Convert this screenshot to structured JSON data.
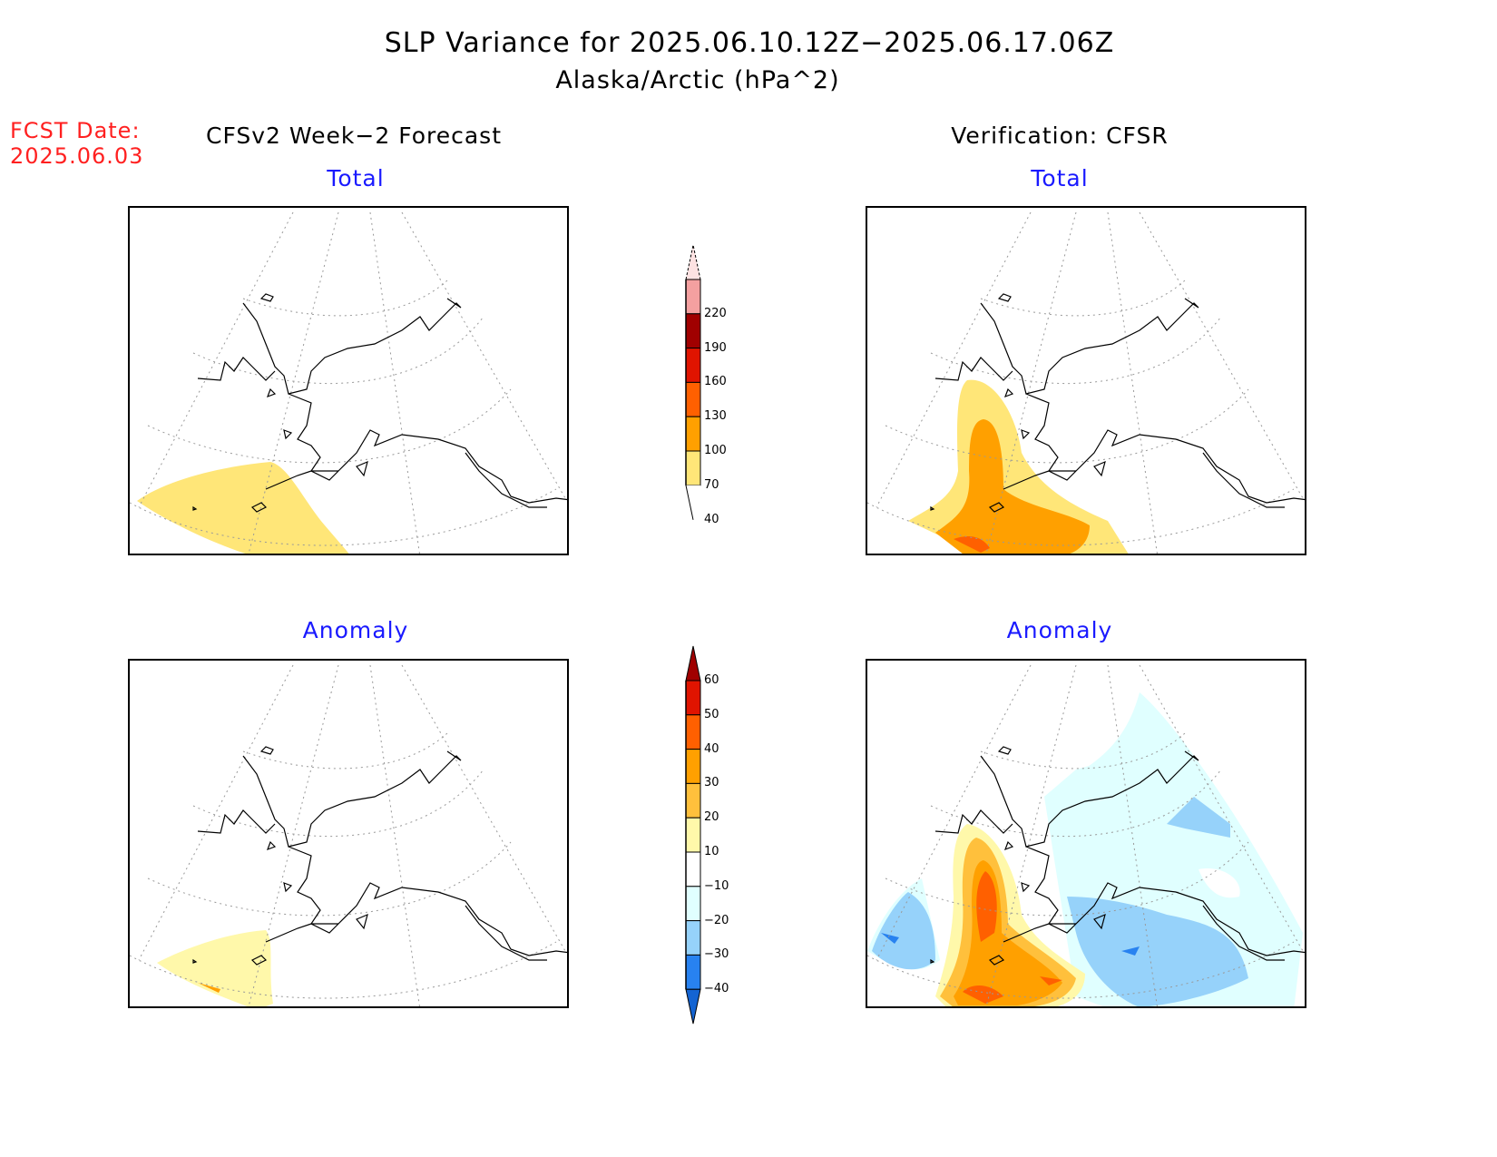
{
  "title": "SLP Variance for 2025.06.10.12Z−2025.06.17.06Z",
  "subtitle": "Alaska/Arctic (hPa^2)",
  "fcst_date_label": "FCST Date:",
  "fcst_date": "2025.06.03",
  "left_column_title": "CFSv2 Week−2 Forecast",
  "right_column_title": "Verification: CFSR",
  "panels": {
    "forecast_total": "Total",
    "forecast_anomaly": "Anomaly",
    "verification_total": "Total",
    "verification_anomaly": "Anomaly"
  },
  "total_colorbar": {
    "labels": [
      "220",
      "190",
      "160",
      "130",
      "100",
      "70",
      "40"
    ],
    "colors_top_to_bottom": [
      "#fde2e2",
      "#f4a0a0",
      "#a00000",
      "#e01400",
      "#ff6000",
      "#ffa000",
      "#ffe678",
      "#ffffff"
    ]
  },
  "anomaly_colorbar": {
    "labels": [
      "60",
      "50",
      "40",
      "30",
      "20",
      "10",
      "−10",
      "−20",
      "−30",
      "−40"
    ],
    "colors_top_to_bottom": [
      "#a00000",
      "#e01400",
      "#ff6000",
      "#ffa000",
      "#ffc03c",
      "#fff8aa",
      "#ffffff",
      "#e0ffff",
      "#96d2fa",
      "#2882f0",
      "#1464d2"
    ]
  }
}
